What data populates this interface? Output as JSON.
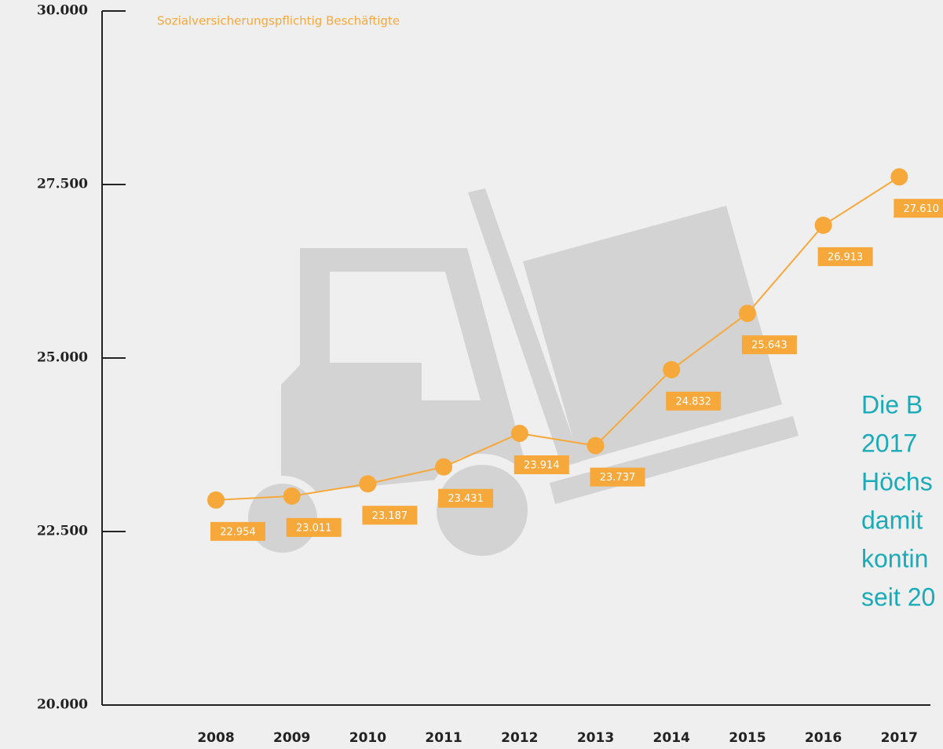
{
  "chart_data": {
    "type": "line",
    "title": "Sozialversicherungspflichtig Beschäftigte",
    "categories": [
      "2008",
      "2009",
      "2010",
      "2011",
      "2012",
      "2013",
      "2014",
      "2015",
      "2016",
      "2017"
    ],
    "values": [
      22954,
      23011,
      23187,
      23431,
      23914,
      23737,
      24832,
      25643,
      26913,
      27610
    ],
    "value_labels": [
      "22.954",
      "23.011",
      "23.187",
      "23.431",
      "23.914",
      "23.737",
      "24.832",
      "25.643",
      "26.913",
      "27.610"
    ],
    "color": "#f7a83b",
    "ylim": [
      20000,
      30000
    ],
    "yticks": [
      {
        "value": 20000,
        "label": "20.000"
      },
      {
        "value": 22500,
        "label": "22.500"
      },
      {
        "value": 25000,
        "label": "25.000"
      },
      {
        "value": 27500,
        "label": "27.500"
      },
      {
        "value": 30000,
        "label": "30.000"
      }
    ],
    "annotation": [
      "Die B",
      "2017",
      "Höchs",
      "damit",
      "kontin",
      "seit 20"
    ]
  }
}
